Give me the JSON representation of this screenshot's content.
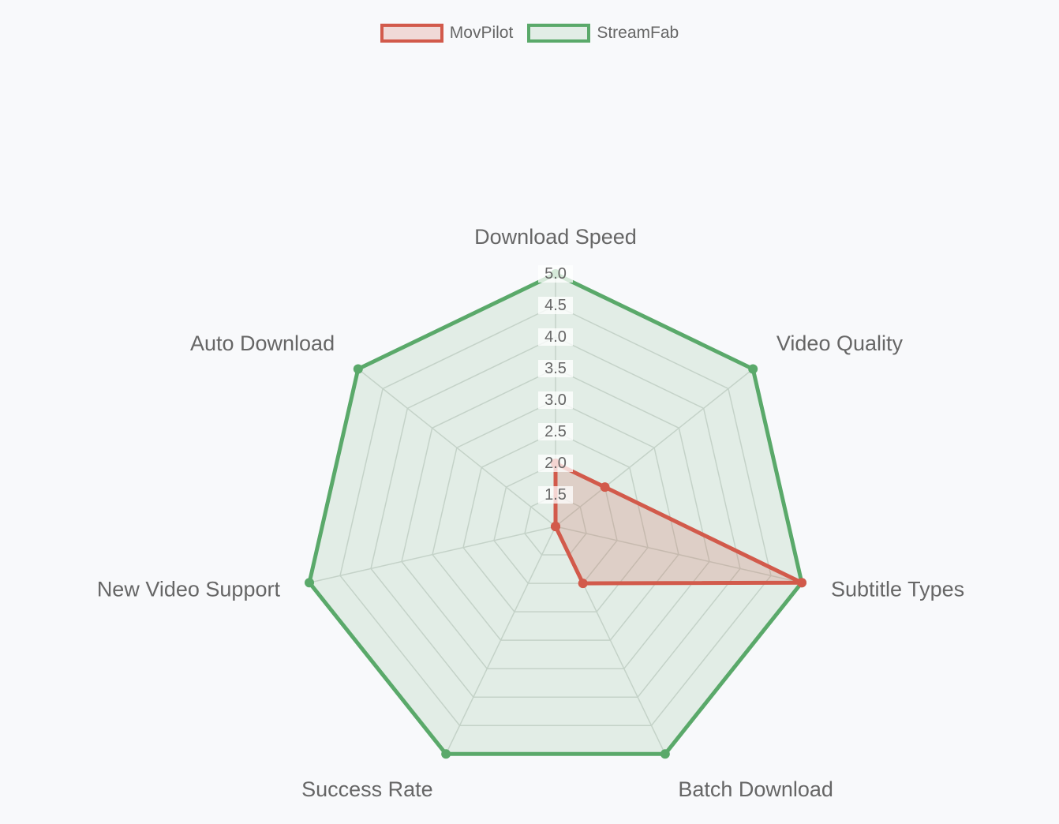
{
  "chart_data": {
    "type": "radar",
    "title": "",
    "categories": [
      "Download Speed",
      "Video Quality",
      "Subtitle Types",
      "Batch Download",
      "Success Rate",
      "New Video Support",
      "Auto Download"
    ],
    "r_range": [
      1,
      5
    ],
    "ticks": [
      "1.5",
      "2.0",
      "2.5",
      "3.0",
      "3.5",
      "4.0",
      "4.5",
      "5.0"
    ],
    "tick_values": [
      1.5,
      2.0,
      2.5,
      3.0,
      3.5,
      4.0,
      4.5,
      5.0
    ],
    "legend_position": "top",
    "series": [
      {
        "name": "MovPilot",
        "values": [
          2,
          2,
          5,
          2,
          1,
          1,
          1
        ],
        "border_color": "#d25a4b",
        "fill_color": "rgba(210,90,75,0.2)"
      },
      {
        "name": "StreamFab",
        "values": [
          5,
          5,
          5,
          5,
          5,
          5,
          5
        ],
        "border_color": "#5aa96a",
        "fill_color": "rgba(90,169,106,0.14)"
      }
    ]
  }
}
